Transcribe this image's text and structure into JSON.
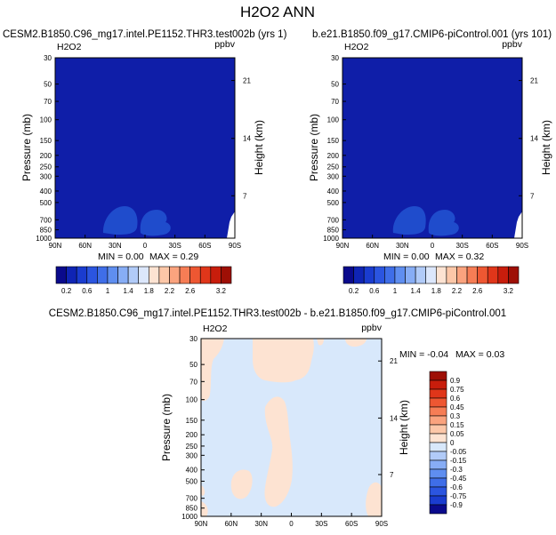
{
  "page_title": "H2O2 ANN",
  "chart_data": [
    {
      "type": "contour",
      "panel": "test",
      "title": "CESM2.B1850.C96_mg17.intel.PE1152.THR3.test002b (yrs 1)",
      "variable": "H2O2",
      "units": "ppbv",
      "ylabel": "Pressure (mb)",
      "y2label": "Height (km)",
      "x_ticks": [
        "90N",
        "60N",
        "30N",
        "0",
        "30S",
        "60S",
        "90S"
      ],
      "y_ticks": [
        "30",
        "50",
        "70",
        "100",
        "150",
        "200",
        "250",
        "300",
        "400",
        "500",
        "700",
        "850",
        "1000"
      ],
      "y2_ticks": [
        "21",
        "14",
        "7"
      ],
      "min_label": "MIN =  0.00",
      "max_label": "MAX =  0.29",
      "min": 0.0,
      "max": 0.29
    },
    {
      "type": "contour",
      "panel": "control",
      "title": "b.e21.B1850.f09_g17.CMIP6-piControl.001 (yrs 101)",
      "variable": "H2O2",
      "units": "ppbv",
      "ylabel": "Pressure (mb)",
      "y2label": "Height (km)",
      "x_ticks": [
        "90N",
        "60N",
        "30N",
        "0",
        "30S",
        "60S",
        "90S"
      ],
      "y_ticks": [
        "30",
        "50",
        "70",
        "100",
        "150",
        "200",
        "250",
        "300",
        "400",
        "500",
        "700",
        "850",
        "1000"
      ],
      "y2_ticks": [
        "21",
        "14",
        "7"
      ],
      "min_label": "MIN =  0.00",
      "max_label": "MAX =  0.32",
      "min": 0.0,
      "max": 0.32
    },
    {
      "type": "contour",
      "panel": "difference",
      "title": "CESM2.B1850.C96_mg17.intel.PE1152.THR3.test002b - b.e21.B1850.f09_g17.CMIP6-piControl.001",
      "variable": "H2O2",
      "units": "ppbv",
      "ylabel": "Pressure (mb)",
      "y2label": "Height (km)",
      "x_ticks": [
        "90N",
        "60N",
        "30N",
        "0",
        "30S",
        "60S",
        "90S"
      ],
      "y_ticks": [
        "30",
        "50",
        "70",
        "100",
        "150",
        "200",
        "250",
        "300",
        "400",
        "500",
        "700",
        "850",
        "1000"
      ],
      "y2_ticks": [
        "21",
        "14",
        "7"
      ],
      "min_label": "MIN = -0.04",
      "max_label": "MAX =  0.03",
      "min": -0.04,
      "max": 0.03
    }
  ],
  "colorbars": {
    "main": {
      "labels": [
        "0.2",
        "0.6",
        "1",
        "1.4",
        "1.8",
        "2.2",
        "2.6",
        "3.2"
      ],
      "colors": [
        "#0a0a8c",
        "#0f24b4",
        "#1a3ccf",
        "#2b55e0",
        "#3f6ee8",
        "#5f8ef0",
        "#87adf5",
        "#b1cbf8",
        "#dce7fb",
        "#fde3d2",
        "#fcc7a8",
        "#faa37e",
        "#f67d55",
        "#ee5732",
        "#e0361a",
        "#c81d0c",
        "#9e0f05"
      ]
    },
    "diff": {
      "labels": [
        "0.9",
        "0.75",
        "0.6",
        "0.45",
        "0.3",
        "0.15",
        "0.05",
        "0",
        "-0.05",
        "-0.15",
        "-0.3",
        "-0.45",
        "-0.6",
        "-0.75",
        "-0.9"
      ],
      "colors": [
        "#9e0f05",
        "#c81d0c",
        "#e0361a",
        "#ee5732",
        "#f67d55",
        "#faa37e",
        "#fcc7a8",
        "#fde3d2",
        "#d8e8fb",
        "#b1cbf8",
        "#87adf5",
        "#5f8ef0",
        "#3f6ee8",
        "#2b55e0",
        "#1a3ccf",
        "#0a0a8c"
      ]
    }
  },
  "colors": {
    "dark_blue": "#0f1ea8",
    "blob_blue": "#1f4ccc",
    "light_blue": "#d8e8fb",
    "peach": "#fde3d2"
  }
}
